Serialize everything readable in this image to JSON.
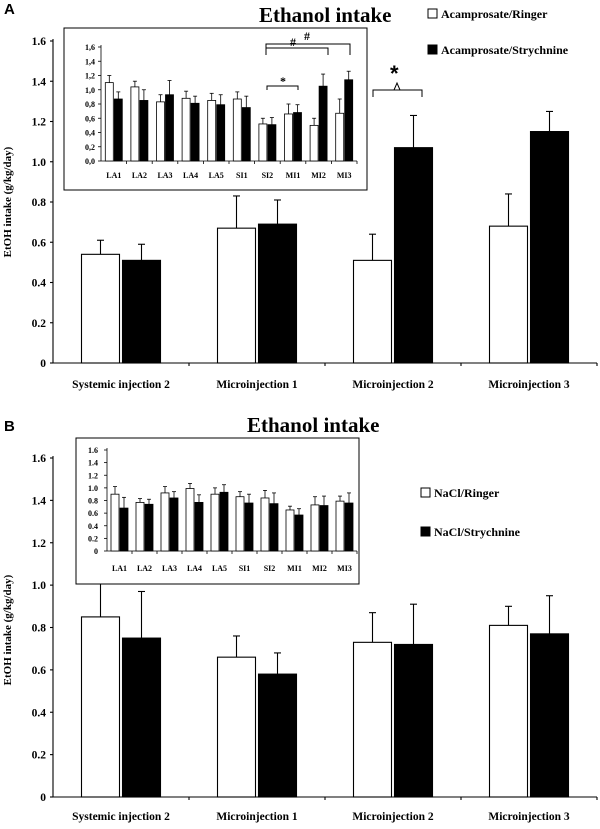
{
  "panels": [
    {
      "letter": "A",
      "title": "Ethanol intake",
      "legend": [
        {
          "label": "Acamprosate/Ringer",
          "color": "#ffffff"
        },
        {
          "label": "Acamprosate/Strychnine",
          "color": "#000000"
        }
      ],
      "ylabel": "EtOH intake (g/kg/day)",
      "main_ticks": [
        "0",
        "0.2",
        "0.4",
        "0.6",
        "0.8",
        "1.0",
        "1.2",
        "1.4",
        "1.6"
      ],
      "inset_ticks": [
        "0,0",
        "0,2",
        "0,4",
        "0,6",
        "0,8",
        "1,0",
        "1,2",
        "1,4",
        "1,6"
      ],
      "annotations": {
        "big_star": "*",
        "inset_star": "*",
        "hash1": "#",
        "hash2": "#"
      }
    },
    {
      "letter": "B",
      "title": "Ethanol intake",
      "legend": [
        {
          "label": "NaCl/Ringer",
          "color": "#ffffff"
        },
        {
          "label": "NaCl/Strychnine",
          "color": "#000000"
        }
      ],
      "ylabel": "EtOH intake (g/kg/day)",
      "main_ticks": [
        "0",
        "0.2",
        "0.4",
        "0.6",
        "0.8",
        "1.0",
        "1.2",
        "1.4",
        "1.6"
      ],
      "inset_ticks": [
        "0",
        "0.2",
        "0.4",
        "0.6",
        "0.8",
        "1.0",
        "1.2",
        "1.4",
        "1.6"
      ]
    }
  ],
  "chart_data": [
    {
      "type": "bar",
      "title": "Ethanol intake",
      "ylabel": "EtOH intake (g/kg/day)",
      "ylim": [
        0,
        1.6
      ],
      "categories": [
        "Systemic injection 2",
        "Microinjection 1",
        "Microinjection 2",
        "Microinjection 3"
      ],
      "series": [
        {
          "name": "Acamprosate/Ringer",
          "values": [
            0.54,
            0.67,
            0.51,
            0.68
          ],
          "errors": [
            0.07,
            0.16,
            0.13,
            0.16
          ]
        },
        {
          "name": "Acamprosate/Strychnine",
          "values": [
            0.51,
            0.69,
            1.07,
            1.15
          ],
          "errors": [
            0.08,
            0.12,
            0.16,
            0.1
          ]
        }
      ]
    },
    {
      "type": "bar",
      "ylim": [
        0,
        1.6
      ],
      "categories": [
        "LA1",
        "LA2",
        "LA3",
        "LA4",
        "LA5",
        "SI1",
        "SI2",
        "MI1",
        "MI2",
        "MI3"
      ],
      "series": [
        {
          "name": "Acamprosate/Ringer",
          "values": [
            1.1,
            1.04,
            0.83,
            0.88,
            0.85,
            0.87,
            0.52,
            0.66,
            0.5,
            0.67
          ],
          "errors": [
            0.1,
            0.08,
            0.1,
            0.1,
            0.1,
            0.1,
            0.08,
            0.14,
            0.1,
            0.2
          ]
        },
        {
          "name": "Acamprosate/Strychnine",
          "values": [
            0.87,
            0.85,
            0.93,
            0.81,
            0.79,
            0.75,
            0.51,
            0.68,
            1.05,
            1.14
          ],
          "errors": [
            0.1,
            0.15,
            0.2,
            0.1,
            0.14,
            0.16,
            0.1,
            0.11,
            0.17,
            0.12
          ]
        }
      ]
    },
    {
      "type": "bar",
      "title": "Ethanol intake",
      "ylabel": "EtOH intake (g/kg/day)",
      "ylim": [
        0,
        1.6
      ],
      "categories": [
        "Systemic injection 2",
        "Microinjection 1",
        "Microinjection 2",
        "Microinjection 3"
      ],
      "series": [
        {
          "name": "NaCl/Ringer",
          "values": [
            0.85,
            0.66,
            0.73,
            0.81
          ],
          "errors": [
            0.17,
            0.1,
            0.14,
            0.09
          ]
        },
        {
          "name": "NaCl/Strychnine",
          "values": [
            0.75,
            0.58,
            0.72,
            0.77
          ],
          "errors": [
            0.22,
            0.1,
            0.19,
            0.18
          ]
        }
      ]
    },
    {
      "type": "bar",
      "ylim": [
        0,
        1.6
      ],
      "categories": [
        "LA1",
        "LA2",
        "LA3",
        "LA4",
        "LA5",
        "SI1",
        "SI2",
        "MI1",
        "MI2",
        "MI3"
      ],
      "series": [
        {
          "name": "NaCl/Ringer",
          "values": [
            0.9,
            0.77,
            0.92,
            0.99,
            0.9,
            0.86,
            0.84,
            0.65,
            0.73,
            0.79
          ],
          "errors": [
            0.12,
            0.06,
            0.1,
            0.08,
            0.1,
            0.08,
            0.12,
            0.06,
            0.13,
            0.08
          ]
        },
        {
          "name": "NaCl/Strychnine",
          "values": [
            0.68,
            0.74,
            0.84,
            0.77,
            0.93,
            0.76,
            0.75,
            0.57,
            0.72,
            0.76
          ],
          "errors": [
            0.17,
            0.08,
            0.1,
            0.12,
            0.12,
            0.14,
            0.17,
            0.1,
            0.15,
            0.16
          ]
        }
      ]
    }
  ]
}
